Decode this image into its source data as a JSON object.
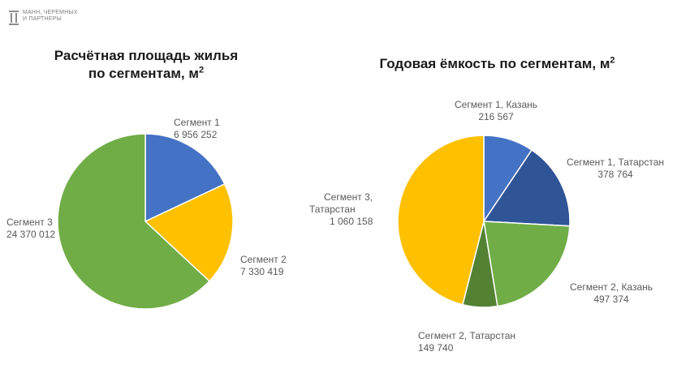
{
  "logo": {
    "line1": "МАНН, ЧЕРЕМНЫХ",
    "line2": "И ПАРТНЕРЫ"
  },
  "chart_data": [
    {
      "type": "pie",
      "title_main": "Расчётная площадь жилья",
      "title_line2": "по сегментам, м",
      "title_sup": "2",
      "slices": [
        {
          "label": "Сегмент 1",
          "value_text": "6 956 252",
          "value": 6956252,
          "color": "#4472c4"
        },
        {
          "label": "Сегмент 2",
          "value_text": "7 330 419",
          "value": 7330419,
          "color": "#ffc000"
        },
        {
          "label": "Сегмент 3",
          "value_text": "24 370 012",
          "value": 24370012,
          "color": "#70ad47"
        }
      ]
    },
    {
      "type": "pie",
      "title_main": "Годовая ёмкость по сегментам, м",
      "title_sup": "2",
      "slices": [
        {
          "label": "Сегмент 1, Казань",
          "value_text": "216 567",
          "value": 216567,
          "color": "#4472c4"
        },
        {
          "label": "Сегмент 1, Татарстан",
          "value_text": "378 764",
          "value": 378764,
          "color": "#2f5597"
        },
        {
          "label": "Сегмент 2, Казань",
          "value_text": "497 374",
          "value": 497374,
          "color": "#70ad47"
        },
        {
          "label": "Сегмент 2, Татарстан",
          "value_text": "149 740",
          "value": 149740,
          "color": "#548235"
        },
        {
          "label_line1": "Сегмент 3,",
          "label_line2": "Татарстан",
          "value_text": "1 060 158",
          "value": 1060158,
          "color": "#ffc000"
        }
      ]
    }
  ]
}
